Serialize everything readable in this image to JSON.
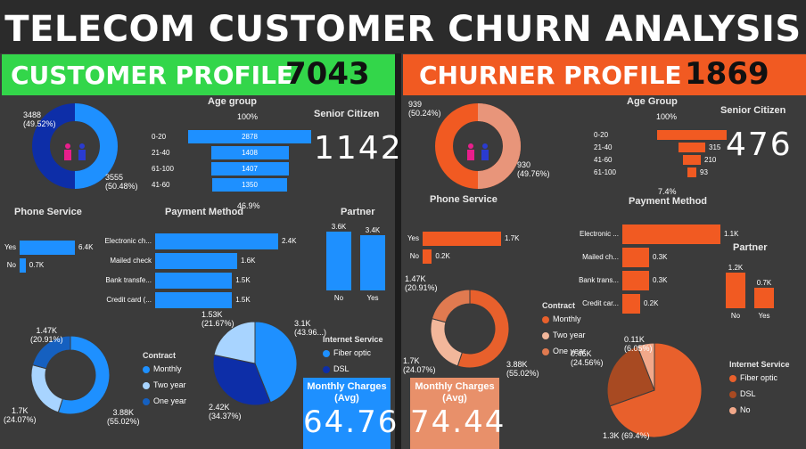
{
  "title": "TELECOM CUSTOMER CHURN ANALYSIS",
  "left": {
    "banner_title": "CUSTOMER PROFILE",
    "banner_count": "7043",
    "gender": {
      "top_label": "3488\n(49.52%)",
      "top_a": "3488",
      "top_b": "(49.52%)",
      "bot_a": "3555",
      "bot_b": "(50.48%)",
      "values": [
        3488,
        3555
      ],
      "colors": [
        "#0d2ea8",
        "#1e90ff"
      ]
    },
    "age_group": {
      "title": "Age group",
      "pct_top": "100%",
      "pct_bottom": "46.9%",
      "rows": [
        {
          "label": "0-20",
          "value": "2878"
        },
        {
          "label": "21-40",
          "value": "1408"
        },
        {
          "label": "61-100",
          "value": "1407"
        },
        {
          "label": "41-60",
          "value": "1350"
        }
      ]
    },
    "senior": {
      "title": "Senior Citizen",
      "value": "1142"
    },
    "phone": {
      "title": "Phone Service",
      "rows": [
        {
          "label": "Yes",
          "value": "6.4K",
          "num": 6.4
        },
        {
          "label": "No",
          "value": "0.7K",
          "num": 0.7
        }
      ]
    },
    "payment": {
      "title": "Payment Method",
      "rows": [
        {
          "label": "Electronic ch...",
          "value": "2.4K",
          "num": 2.4
        },
        {
          "label": "Mailed check",
          "value": "1.6K",
          "num": 1.6
        },
        {
          "label": "Bank transfe...",
          "value": "1.5K",
          "num": 1.5
        },
        {
          "label": "Credit card (...",
          "value": "1.5K",
          "num": 1.5
        }
      ]
    },
    "partner": {
      "title": "Partner",
      "rows": [
        {
          "label": "No",
          "value": "3.6K",
          "num": 3.6
        },
        {
          "label": "Yes",
          "value": "3.4K",
          "num": 3.4
        }
      ]
    },
    "contract": {
      "title": "Contract",
      "items": [
        {
          "label": "Monthly",
          "color": "#1e90ff"
        },
        {
          "label": "Two year",
          "color": "#a8d4ff"
        },
        {
          "label": "One year",
          "color": "#1560c0"
        }
      ],
      "lbl_a1": "1.47K",
      "lbl_a2": "(20.91%)",
      "lbl_b1": "1.7K",
      "lbl_b2": "(24.07%)",
      "lbl_c1": "3.88K",
      "lbl_c2": "(55.02%)",
      "values": [
        3.88,
        1.7,
        1.47
      ]
    },
    "internet": {
      "title": "Internet Service",
      "items": [
        {
          "label": "Fiber optic",
          "color": "#1e90ff"
        },
        {
          "label": "DSL",
          "color": "#0d2ea8"
        }
      ],
      "lbl_a1": "1.53K",
      "lbl_a2": "(21.67%)",
      "lbl_b1": "3.1K",
      "lbl_b2": "(43.96...)",
      "lbl_c1": "2.42K",
      "lbl_c2": "(34.37%)",
      "values": [
        3.1,
        2.42,
        1.53
      ]
    },
    "monthly": {
      "title1": "Monthly Charges",
      "title2": "(Avg)",
      "value": "64.76"
    }
  },
  "right": {
    "banner_title": "CHURNER PROFILE",
    "banner_count": "1869",
    "gender": {
      "top_a": "939",
      "top_b": "(50.24%)",
      "bot_a": "930",
      "bot_b": "(49.76%)",
      "values": [
        939,
        930
      ],
      "colors": [
        "#f15a22",
        "#e8957a"
      ]
    },
    "age_group": {
      "title": "Age Group",
      "pct_top": "100%",
      "pct_bottom": "7.4%",
      "rows": [
        {
          "label": "0-20",
          "value": ""
        },
        {
          "label": "21-40",
          "value": "315"
        },
        {
          "label": "41-60",
          "value": "210"
        },
        {
          "label": "61-100",
          "value": "93"
        }
      ]
    },
    "senior": {
      "title": "Senior Citizen",
      "value": "476"
    },
    "phone": {
      "title": "Phone Service",
      "rows": [
        {
          "label": "Yes",
          "value": "1.7K",
          "num": 1.7
        },
        {
          "label": "No",
          "value": "0.2K",
          "num": 0.2
        }
      ]
    },
    "payment": {
      "title": "Payment Method",
      "rows": [
        {
          "label": "Electronic ...",
          "value": "1.1K",
          "num": 1.1
        },
        {
          "label": "Mailed ch...",
          "value": "0.3K",
          "num": 0.3
        },
        {
          "label": "Bank trans...",
          "value": "0.3K",
          "num": 0.3
        },
        {
          "label": "Credit car...",
          "value": "0.2K",
          "num": 0.2
        }
      ]
    },
    "partner": {
      "title": "Partner",
      "rows": [
        {
          "label": "No",
          "value": "1.2K",
          "num": 1.2
        },
        {
          "label": "Yes",
          "value": "0.7K",
          "num": 0.7
        }
      ]
    },
    "contract": {
      "title": "Contract",
      "items": [
        {
          "label": "Monthly",
          "color": "#e8602c"
        },
        {
          "label": "Two year",
          "color": "#f2b79b"
        },
        {
          "label": "One year",
          "color": "#e07a50"
        }
      ],
      "lbl_a1": "1.47K",
      "lbl_a2": "(20.91%)",
      "lbl_b1": "1.7K",
      "lbl_b2": "(24.07%)",
      "lbl_c1": "3.88K",
      "lbl_c2": "(55.02%)",
      "values": [
        3.88,
        1.7,
        1.47
      ]
    },
    "internet": {
      "title": "Internet Service",
      "items": [
        {
          "label": "Fiber optic",
          "color": "#e8602c"
        },
        {
          "label": "DSL",
          "color": "#a84a22"
        },
        {
          "label": "No",
          "color": "#f2a88a"
        }
      ],
      "lbl_a1": "0.11K",
      "lbl_a2": "(6.05%)",
      "lbl_b1": "0.46K",
      "lbl_b2": "(24.56%)",
      "lbl_c1": "1.3K (69.4%)",
      "values": [
        1.3,
        0.46,
        0.11
      ]
    },
    "monthly": {
      "title1": "Monthly Charges",
      "title2": "(Avg)",
      "value": "74.44"
    }
  }
}
